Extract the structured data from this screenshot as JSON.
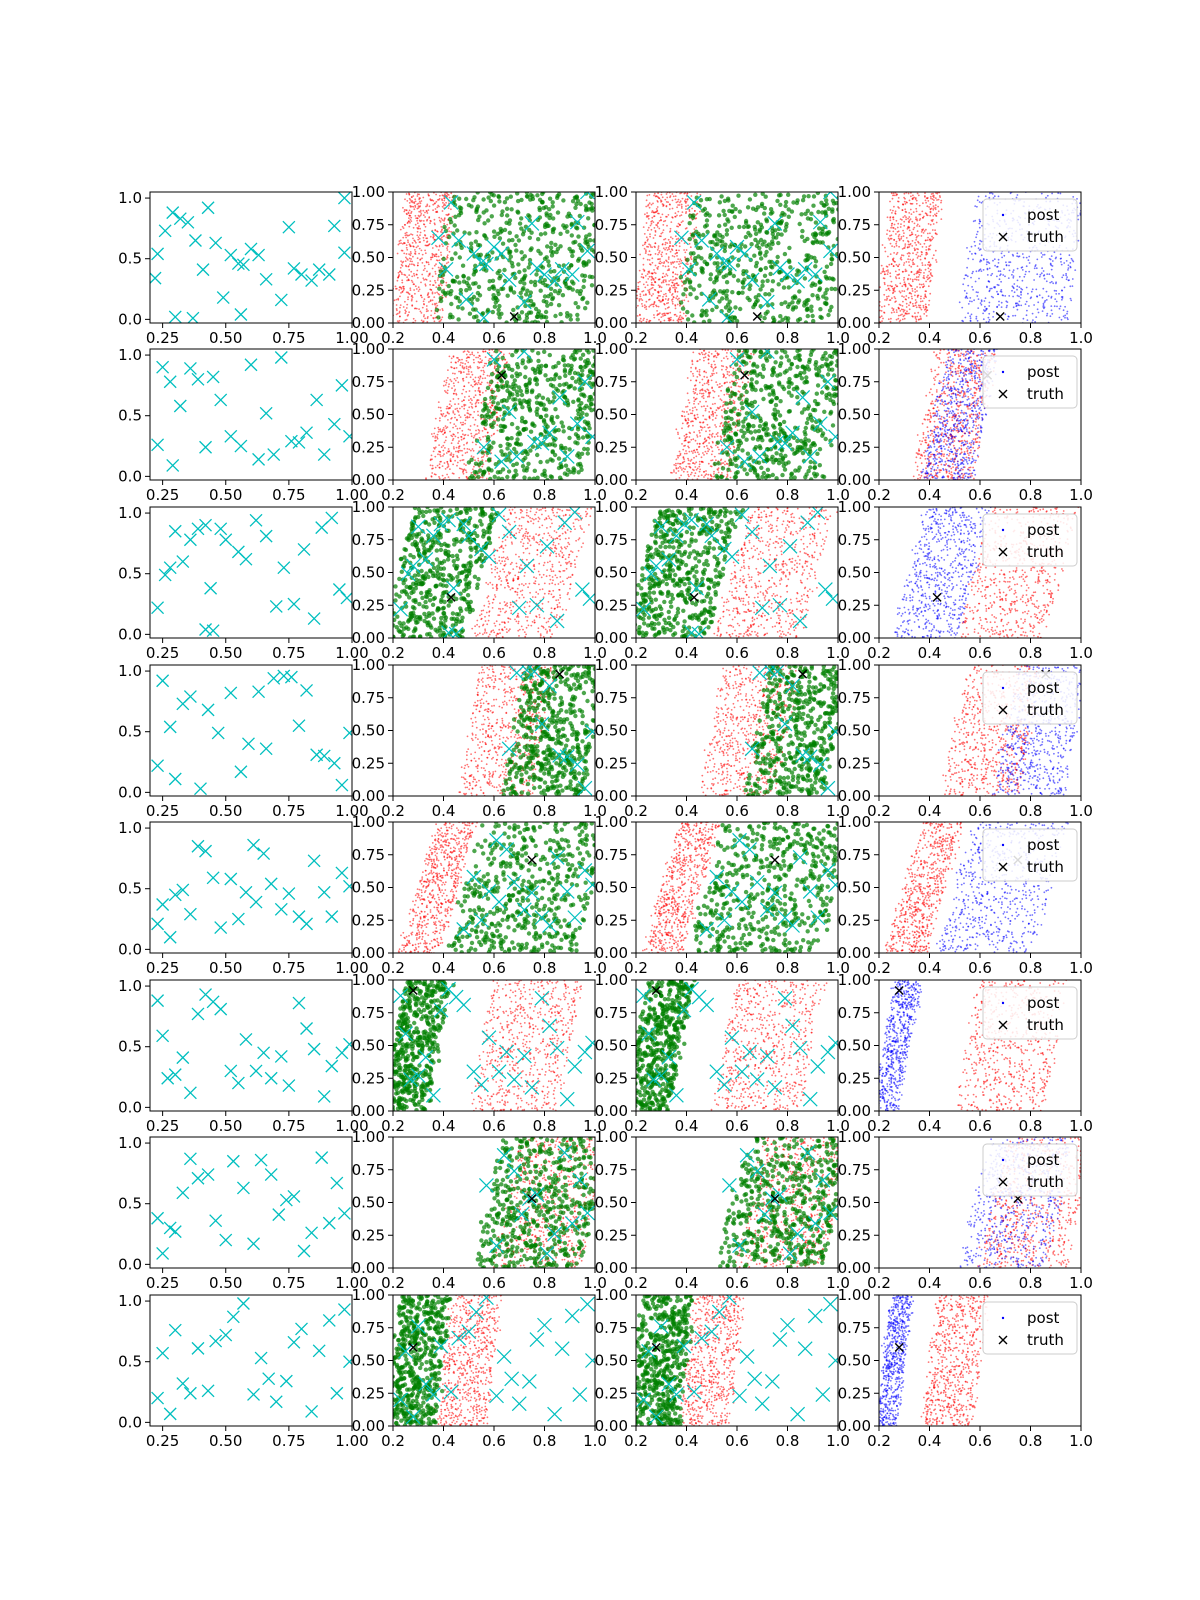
{
  "figure": {
    "colors": {
      "markers": "#00bfbf",
      "green": "#008000",
      "red": "#ff0000",
      "blue": "#0000ff",
      "truth": "#000000"
    },
    "legend_placement": "upper right of column 4 panels"
  },
  "chart_data": {
    "type": "scatter",
    "grid": false,
    "columns": [
      {
        "xlim": [
          0.2,
          1.0
        ],
        "ylim": [
          -0.03,
          1.05
        ],
        "xticks": [
          "0.25",
          "0.50",
          "0.75",
          "1.00"
        ],
        "yticks": [
          "0.0",
          "0.5",
          "1.0"
        ],
        "content": "cyan x markers"
      },
      {
        "xlim": [
          0.2,
          1.0
        ],
        "ylim": [
          0,
          1.0
        ],
        "xticks": [
          "0.2",
          "0.4",
          "0.6",
          "0.8",
          "1.0"
        ],
        "yticks": [
          "0.00",
          "0.25",
          "0.50",
          "0.75",
          "1.00"
        ],
        "content": "green dots, red dots, cyan x markers, black truth x"
      },
      {
        "xlim": [
          0.2,
          1.0
        ],
        "ylim": [
          0,
          1.0
        ],
        "xticks": [
          "0.2",
          "0.4",
          "0.6",
          "0.8",
          "1.0"
        ],
        "yticks": [
          "0.00",
          "0.25",
          "0.50",
          "0.75",
          "1.00"
        ],
        "content": "green dots, red dots, cyan x markers, black truth x"
      },
      {
        "xlim": [
          0.2,
          1.0
        ],
        "ylim": [
          0,
          1.0
        ],
        "xticks": [
          "0.2",
          "0.4",
          "0.6",
          "0.8",
          "1.0"
        ],
        "yticks": [
          "0.00",
          "0.25",
          "0.50",
          "0.75",
          "1.00"
        ],
        "content": "blue dots (post), red dots, black truth x",
        "legend": [
          "post",
          "truth"
        ]
      }
    ],
    "rows": [
      {
        "truth": [
          0.68,
          0.05
        ],
        "red": [
          0.22,
          0.42
        ],
        "green": [
          0.4,
          1.0
        ],
        "blue": [
          0.55,
          0.98
        ],
        "tilt": 0.06
      },
      {
        "truth": [
          0.63,
          0.8
        ],
        "red": [
          0.38,
          0.62
        ],
        "green": [
          0.55,
          1.0
        ],
        "blue": [
          0.42,
          0.62
        ],
        "tilt": 0.1
      },
      {
        "truth": [
          0.43,
          0.31
        ],
        "red": [
          0.58,
          0.92
        ],
        "green": [
          0.22,
          0.55
        ],
        "blue": [
          0.32,
          0.58
        ],
        "tilt": 0.14
      },
      {
        "truth": [
          0.86,
          0.93
        ],
        "red": [
          0.5,
          0.8
        ],
        "green": [
          0.68,
          1.0
        ],
        "blue": [
          0.7,
          0.98
        ],
        "tilt": 0.1
      },
      {
        "truth": [
          0.75,
          0.71
        ],
        "red": [
          0.3,
          0.46
        ],
        "green": [
          0.48,
          1.0
        ],
        "blue": [
          0.5,
          0.88
        ],
        "tilt": 0.15
      },
      {
        "truth": [
          0.28,
          0.92
        ],
        "red": [
          0.55,
          0.9
        ],
        "green": [
          0.2,
          0.38
        ],
        "blue": [
          0.22,
          0.32
        ],
        "tilt": 0.1
      },
      {
        "truth": [
          0.75,
          0.53
        ],
        "red": [
          0.65,
          1.0
        ],
        "green": [
          0.58,
          1.0
        ],
        "blue": [
          0.58,
          0.92
        ],
        "tilt": 0.12
      },
      {
        "truth": [
          0.28,
          0.6
        ],
        "red": [
          0.4,
          0.6
        ],
        "green": [
          0.2,
          0.4
        ],
        "blue": [
          0.22,
          0.3
        ],
        "tilt": 0.06
      }
    ],
    "marker_sets": [
      [
        [
          0.22,
          0.34
        ],
        [
          0.23,
          0.54
        ],
        [
          0.26,
          0.73
        ],
        [
          0.29,
          0.88
        ],
        [
          0.32,
          0.83
        ],
        [
          0.35,
          0.8
        ],
        [
          0.38,
          0.65
        ],
        [
          0.41,
          0.41
        ],
        [
          0.43,
          0.92
        ],
        [
          0.46,
          0.63
        ],
        [
          0.49,
          0.18
        ],
        [
          0.52,
          0.53
        ],
        [
          0.55,
          0.46
        ],
        [
          0.57,
          0.45
        ],
        [
          0.6,
          0.58
        ],
        [
          0.63,
          0.53
        ],
        [
          0.66,
          0.33
        ],
        [
          0.72,
          0.16
        ],
        [
          0.75,
          0.76
        ],
        [
          0.77,
          0.42
        ],
        [
          0.8,
          0.37
        ],
        [
          0.84,
          0.32
        ],
        [
          0.87,
          0.41
        ],
        [
          0.91,
          0.37
        ],
        [
          0.93,
          0.77
        ],
        [
          0.97,
          0.55
        ],
        [
          0.3,
          0.02
        ],
        [
          0.37,
          0.01
        ],
        [
          0.56,
          0.04
        ],
        [
          0.97,
          1.0
        ]
      ],
      [
        [
          0.23,
          0.26
        ],
        [
          0.25,
          0.9
        ],
        [
          0.28,
          0.78
        ],
        [
          0.29,
          0.09
        ],
        [
          0.32,
          0.58
        ],
        [
          0.36,
          0.89
        ],
        [
          0.39,
          0.8
        ],
        [
          0.42,
          0.24
        ],
        [
          0.45,
          0.82
        ],
        [
          0.48,
          0.63
        ],
        [
          0.52,
          0.33
        ],
        [
          0.56,
          0.25
        ],
        [
          0.6,
          0.92
        ],
        [
          0.63,
          0.14
        ],
        [
          0.66,
          0.52
        ],
        [
          0.69,
          0.18
        ],
        [
          0.72,
          0.98
        ],
        [
          0.76,
          0.29
        ],
        [
          0.79,
          0.28
        ],
        [
          0.82,
          0.36
        ],
        [
          0.86,
          0.63
        ],
        [
          0.89,
          0.18
        ],
        [
          0.93,
          0.43
        ],
        [
          0.96,
          0.75
        ],
        [
          0.99,
          0.33
        ]
      ],
      [
        [
          0.23,
          0.22
        ],
        [
          0.26,
          0.49
        ],
        [
          0.28,
          0.55
        ],
        [
          0.3,
          0.85
        ],
        [
          0.33,
          0.6
        ],
        [
          0.36,
          0.78
        ],
        [
          0.39,
          0.87
        ],
        [
          0.42,
          0.9
        ],
        [
          0.44,
          0.38
        ],
        [
          0.48,
          0.87
        ],
        [
          0.5,
          0.78
        ],
        [
          0.55,
          0.68
        ],
        [
          0.58,
          0.62
        ],
        [
          0.62,
          0.94
        ],
        [
          0.66,
          0.81
        ],
        [
          0.7,
          0.23
        ],
        [
          0.73,
          0.55
        ],
        [
          0.77,
          0.25
        ],
        [
          0.81,
          0.7
        ],
        [
          0.85,
          0.13
        ],
        [
          0.88,
          0.88
        ],
        [
          0.92,
          0.96
        ],
        [
          0.95,
          0.37
        ],
        [
          0.98,
          0.3
        ],
        [
          0.42,
          0.04
        ],
        [
          0.45,
          0.03
        ]
      ],
      [
        [
          0.23,
          0.22
        ],
        [
          0.25,
          0.92
        ],
        [
          0.28,
          0.54
        ],
        [
          0.3,
          0.11
        ],
        [
          0.33,
          0.73
        ],
        [
          0.36,
          0.79
        ],
        [
          0.4,
          0.03
        ],
        [
          0.43,
          0.68
        ],
        [
          0.47,
          0.49
        ],
        [
          0.52,
          0.82
        ],
        [
          0.56,
          0.17
        ],
        [
          0.59,
          0.4
        ],
        [
          0.63,
          0.83
        ],
        [
          0.66,
          0.36
        ],
        [
          0.69,
          0.94
        ],
        [
          0.73,
          0.96
        ],
        [
          0.76,
          0.95
        ],
        [
          0.79,
          0.55
        ],
        [
          0.82,
          0.84
        ],
        [
          0.86,
          0.31
        ],
        [
          0.89,
          0.3
        ],
        [
          0.93,
          0.24
        ],
        [
          0.96,
          0.06
        ],
        [
          0.99,
          0.49
        ]
      ],
      [
        [
          0.23,
          0.21
        ],
        [
          0.25,
          0.37
        ],
        [
          0.28,
          0.1
        ],
        [
          0.3,
          0.45
        ],
        [
          0.33,
          0.49
        ],
        [
          0.36,
          0.29
        ],
        [
          0.39,
          0.85
        ],
        [
          0.42,
          0.81
        ],
        [
          0.45,
          0.59
        ],
        [
          0.48,
          0.18
        ],
        [
          0.52,
          0.58
        ],
        [
          0.55,
          0.25
        ],
        [
          0.58,
          0.47
        ],
        [
          0.62,
          0.39
        ],
        [
          0.65,
          0.79
        ],
        [
          0.68,
          0.54
        ],
        [
          0.72,
          0.33
        ],
        [
          0.75,
          0.46
        ],
        [
          0.79,
          0.27
        ],
        [
          0.82,
          0.21
        ],
        [
          0.85,
          0.73
        ],
        [
          0.89,
          0.47
        ],
        [
          0.92,
          0.27
        ],
        [
          0.96,
          0.63
        ],
        [
          0.99,
          0.52
        ],
        [
          0.61,
          0.86
        ]
      ],
      [
        [
          0.23,
          0.88
        ],
        [
          0.25,
          0.59
        ],
        [
          0.27,
          0.24
        ],
        [
          0.3,
          0.27
        ],
        [
          0.33,
          0.41
        ],
        [
          0.36,
          0.12
        ],
        [
          0.39,
          0.77
        ],
        [
          0.42,
          0.93
        ],
        [
          0.45,
          0.87
        ],
        [
          0.48,
          0.81
        ],
        [
          0.52,
          0.3
        ],
        [
          0.55,
          0.2
        ],
        [
          0.58,
          0.56
        ],
        [
          0.62,
          0.3
        ],
        [
          0.65,
          0.45
        ],
        [
          0.68,
          0.24
        ],
        [
          0.72,
          0.42
        ],
        [
          0.75,
          0.18
        ],
        [
          0.79,
          0.86
        ],
        [
          0.82,
          0.65
        ],
        [
          0.85,
          0.48
        ],
        [
          0.89,
          0.09
        ],
        [
          0.92,
          0.34
        ],
        [
          0.96,
          0.45
        ],
        [
          0.99,
          0.52
        ]
      ],
      [
        [
          0.23,
          0.38
        ],
        [
          0.25,
          0.09
        ],
        [
          0.28,
          0.3
        ],
        [
          0.3,
          0.27
        ],
        [
          0.33,
          0.59
        ],
        [
          0.36,
          0.87
        ],
        [
          0.39,
          0.71
        ],
        [
          0.43,
          0.74
        ],
        [
          0.46,
          0.36
        ],
        [
          0.5,
          0.2
        ],
        [
          0.53,
          0.85
        ],
        [
          0.57,
          0.63
        ],
        [
          0.61,
          0.17
        ],
        [
          0.64,
          0.86
        ],
        [
          0.68,
          0.74
        ],
        [
          0.71,
          0.41
        ],
        [
          0.74,
          0.53
        ],
        [
          0.77,
          0.56
        ],
        [
          0.81,
          0.11
        ],
        [
          0.84,
          0.26
        ],
        [
          0.88,
          0.88
        ],
        [
          0.91,
          0.34
        ],
        [
          0.94,
          0.67
        ],
        [
          0.97,
          0.42
        ]
      ],
      [
        [
          0.23,
          0.2
        ],
        [
          0.25,
          0.57
        ],
        [
          0.28,
          0.07
        ],
        [
          0.3,
          0.76
        ],
        [
          0.33,
          0.32
        ],
        [
          0.36,
          0.24
        ],
        [
          0.39,
          0.61
        ],
        [
          0.43,
          0.26
        ],
        [
          0.46,
          0.67
        ],
        [
          0.5,
          0.72
        ],
        [
          0.53,
          0.87
        ],
        [
          0.57,
          0.98
        ],
        [
          0.61,
          0.23
        ],
        [
          0.64,
          0.53
        ],
        [
          0.67,
          0.36
        ],
        [
          0.7,
          0.17
        ],
        [
          0.74,
          0.34
        ],
        [
          0.77,
          0.66
        ],
        [
          0.8,
          0.77
        ],
        [
          0.84,
          0.09
        ],
        [
          0.87,
          0.59
        ],
        [
          0.91,
          0.84
        ],
        [
          0.94,
          0.24
        ],
        [
          0.97,
          0.93
        ],
        [
          0.99,
          0.5
        ]
      ]
    ]
  }
}
